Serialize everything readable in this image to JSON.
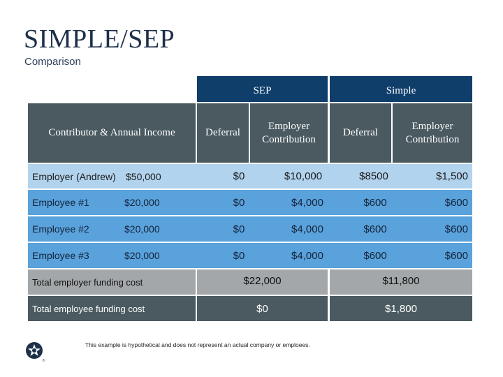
{
  "slide": {
    "title": "SIMPLE/SEP",
    "subtitle": "Comparison",
    "footnote": "This example is hypothetical and does not represent an actual company or emploees."
  },
  "table": {
    "group_headers": {
      "sep": "SEP",
      "simple": "Simple"
    },
    "column_headers": {
      "contributor": "Contributor & Annual Income",
      "sep_deferral": "Deferral",
      "sep_employer": "Employer Contribution",
      "simple_deferral": "Deferral",
      "simple_employer": "Employer Contribution"
    },
    "rows": [
      {
        "name": "Employer (Andrew)",
        "income": "$50,000",
        "sep_deferral": "$0",
        "sep_employer": "$10,000",
        "simple_deferral": "$8500",
        "simple_employer": "$1,500"
      },
      {
        "name": "Employee #1",
        "income": "$20,000",
        "sep_deferral": "$0",
        "sep_employer": "$4,000",
        "simple_deferral": "$600",
        "simple_employer": "$600"
      },
      {
        "name": "Employee #2",
        "income": "$20,000",
        "sep_deferral": "$0",
        "sep_employer": "$4,000",
        "simple_deferral": "$600",
        "simple_employer": "$600"
      },
      {
        "name": "Employee #3",
        "income": "$20,000",
        "sep_deferral": "$0",
        "sep_employer": "$4,000",
        "simple_deferral": "$600",
        "simple_employer": "$600"
      }
    ],
    "totals": [
      {
        "label": "Total employer funding cost",
        "sep": "$22,000",
        "simple": "$11,800"
      },
      {
        "label": "Total employee funding cost",
        "sep": "$0",
        "simple": "$1,800"
      }
    ]
  },
  "colors": {
    "navy_header": "#0f3e6b",
    "slate_header": "#4a5a60",
    "light_row": "#b2d3ee",
    "blue_row": "#5aa2dc",
    "gray_total": "#a3a7aa",
    "dark_total": "#4a5a60"
  },
  "logo": {
    "icon": "star-badge-icon"
  }
}
